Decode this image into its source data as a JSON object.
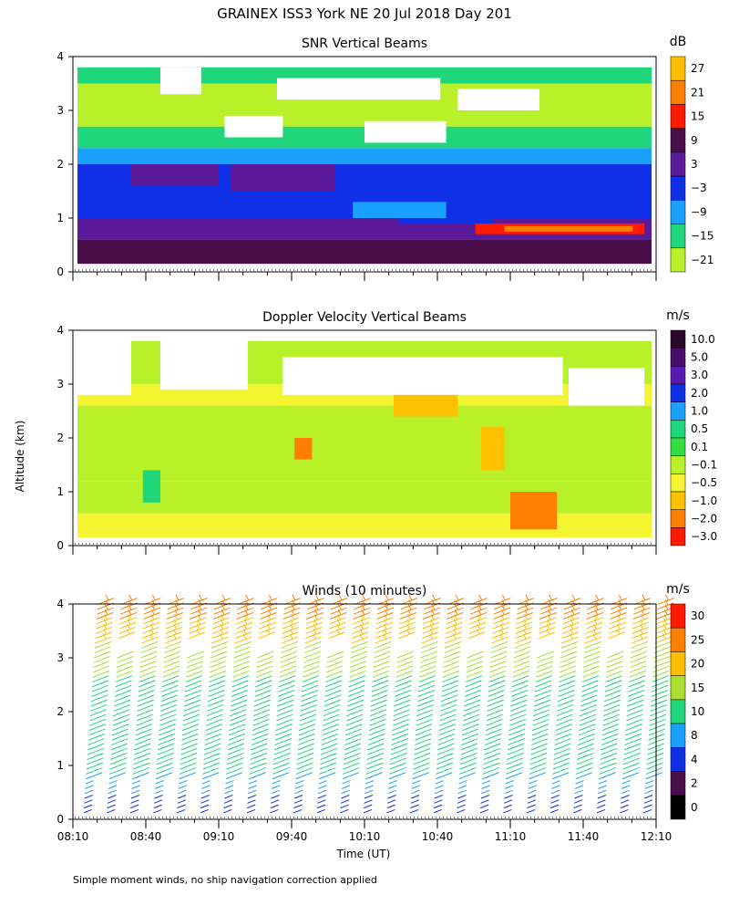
{
  "page": {
    "title": "GRAINEX ISS3 York NE  20 Jul 2018 Day 201",
    "ylabel": "Altitude (km)",
    "xlabel": "Time (UT)",
    "footnote": "Simple moment winds, no ship navigation correction applied"
  },
  "chart_data": [
    {
      "type": "heatmap",
      "title": "SNR Vertical Beams",
      "xlabel": "",
      "ylabel": "Altitude (km)",
      "x_ticks": [],
      "ylim": [
        0,
        4
      ],
      "y_ticks": [
        "0",
        "1",
        "2",
        "3",
        "4"
      ],
      "colorbar": {
        "unit": "dB",
        "labels": [
          "27",
          "21",
          "15",
          "9",
          "3",
          "−3",
          "−9",
          "−15",
          "−21"
        ],
        "colors": [
          "#ffbf00",
          "#ff7f00",
          "#ff1a00",
          "#4a0d4a",
          "#5a1a9a",
          "#1030e8",
          "#1aa0ff",
          "#1fd67a",
          "#b8f02a"
        ]
      },
      "rows": [
        {
          "y0": 0.0,
          "y1": 0.15,
          "c": 3
        },
        {
          "y0": 0.15,
          "y1": 0.6,
          "c": 3
        },
        {
          "y0": 0.6,
          "y1": 1.0,
          "c": 4
        },
        {
          "y0": 1.0,
          "y1": 1.5,
          "c": 5
        },
        {
          "y0": 1.5,
          "y1": 2.0,
          "c": 5
        },
        {
          "y0": 2.0,
          "y1": 2.3,
          "c": 6
        },
        {
          "y0": 2.3,
          "y1": 2.7,
          "c": 7
        },
        {
          "y0": 2.7,
          "y1": 3.1,
          "c": 8
        },
        {
          "y0": 3.1,
          "y1": 3.5,
          "c": 8
        },
        {
          "y0": 3.5,
          "y1": 3.8,
          "c": 7
        }
      ],
      "patches": [
        {
          "x0": 6.9,
          "x1": 9.8,
          "y0": 0.7,
          "y1": 0.9,
          "c": 2
        },
        {
          "x0": 7.4,
          "x1": 9.6,
          "y0": 0.75,
          "y1": 0.85,
          "c": 1
        },
        {
          "x0": 5.6,
          "x1": 7.2,
          "y0": 0.9,
          "y1": 1.1,
          "c": 5
        },
        {
          "x0": 4.8,
          "x1": 6.4,
          "y0": 1.0,
          "y1": 1.3,
          "c": 6
        },
        {
          "x0": 2.7,
          "x1": 4.5,
          "y0": 1.5,
          "y1": 2.0,
          "c": 4
        },
        {
          "x0": 1.0,
          "x1": 2.5,
          "y0": 1.6,
          "y1": 2.0,
          "c": 4
        }
      ],
      "gaps": [
        {
          "x0": 3.5,
          "x1": 6.3,
          "y0": 3.2,
          "y1": 3.6
        },
        {
          "x0": 6.6,
          "x1": 8.0,
          "y0": 3.0,
          "y1": 3.4
        },
        {
          "x0": 1.5,
          "x1": 2.2,
          "y0": 3.3,
          "y1": 3.8
        },
        {
          "x0": 2.6,
          "x1": 3.6,
          "y0": 2.5,
          "y1": 2.9
        },
        {
          "x0": 5.0,
          "x1": 6.4,
          "y0": 2.4,
          "y1": 2.8
        }
      ]
    },
    {
      "type": "heatmap",
      "title": "Doppler Velocity Vertical Beams",
      "xlabel": "",
      "ylabel": "Altitude (km)",
      "x_ticks": [],
      "ylim": [
        0,
        4
      ],
      "y_ticks": [
        "0",
        "1",
        "2",
        "3",
        "4"
      ],
      "colorbar": {
        "unit": "m/s",
        "labels": [
          "10.0",
          "5.0",
          "3.0",
          "2.0",
          "1.0",
          "0.5",
          "0.1",
          "−0.1",
          "−0.5",
          "−1.0",
          "−2.0",
          "−3.0"
        ],
        "colors": [
          "#2a0a2a",
          "#4a0d6a",
          "#5a1ab0",
          "#1030e8",
          "#1aa0ff",
          "#1fd67a",
          "#30e040",
          "#b8f02a",
          "#f4f430",
          "#ffc000",
          "#ff8000",
          "#ff1a00"
        ]
      },
      "rows": [
        {
          "y0": 0.0,
          "y1": 0.15,
          "c": 8
        },
        {
          "y0": 0.15,
          "y1": 0.6,
          "c": 8
        },
        {
          "y0": 0.6,
          "y1": 1.2,
          "c": 7
        },
        {
          "y0": 1.2,
          "y1": 2.0,
          "c": 7
        },
        {
          "y0": 2.0,
          "y1": 2.6,
          "c": 7
        },
        {
          "y0": 2.6,
          "y1": 3.0,
          "c": 8
        },
        {
          "y0": 3.0,
          "y1": 3.5,
          "c": 7
        },
        {
          "y0": 3.5,
          "y1": 3.8,
          "c": 7
        }
      ],
      "patches": [
        {
          "x0": 7.5,
          "x1": 8.3,
          "y0": 0.3,
          "y1": 1.0,
          "c": 10
        },
        {
          "x0": 7.0,
          "x1": 7.4,
          "y0": 1.4,
          "y1": 2.2,
          "c": 9
        },
        {
          "x0": 3.8,
          "x1": 4.1,
          "y0": 1.6,
          "y1": 2.0,
          "c": 10
        },
        {
          "x0": 1.2,
          "x1": 1.5,
          "y0": 0.8,
          "y1": 1.4,
          "c": 5
        },
        {
          "x0": 2.5,
          "x1": 2.9,
          "y0": 3.1,
          "y1": 3.2,
          "c": 10
        },
        {
          "x0": 5.5,
          "x1": 6.6,
          "y0": 2.4,
          "y1": 2.9,
          "c": 9
        }
      ],
      "gaps": [
        {
          "x0": 3.6,
          "x1": 8.4,
          "y0": 2.8,
          "y1": 3.5
        },
        {
          "x0": 1.5,
          "x1": 3.0,
          "y0": 2.9,
          "y1": 4.0
        },
        {
          "x0": 8.5,
          "x1": 9.8,
          "y0": 2.6,
          "y1": 3.3
        },
        {
          "x0": 0.0,
          "x1": 1.0,
          "y0": 2.8,
          "y1": 4.0
        }
      ]
    },
    {
      "type": "barbs",
      "title": "Winds (10 minutes)",
      "xlabel": "Time (UT)",
      "ylabel": "Altitude (km)",
      "x_ticks": [
        "08:10",
        "08:40",
        "09:10",
        "09:40",
        "10:10",
        "10:40",
        "11:10",
        "11:40",
        "12:10"
      ],
      "ylim": [
        0,
        4
      ],
      "y_ticks": [
        "0",
        "1",
        "2",
        "3",
        "4"
      ],
      "colorbar": {
        "unit": "m/s",
        "labels": [
          "30",
          "25",
          "20",
          "15",
          "10",
          "8",
          "4",
          "2",
          "0"
        ],
        "colors": [
          "#ff1a00",
          "#ff7f00",
          "#ffbf00",
          "#a8e030",
          "#1fd67a",
          "#1aa0ff",
          "#1030e8",
          "#4a0d4a",
          "#000000"
        ]
      },
      "profile_times": [
        0.3,
        0.7,
        1.1,
        1.5,
        1.9,
        2.3,
        2.7,
        3.1,
        3.5,
        3.9,
        4.3,
        4.7,
        5.1,
        5.5,
        5.9,
        6.3,
        6.7,
        7.1,
        7.5,
        7.9,
        8.3,
        8.7,
        9.1,
        9.5,
        9.9
      ]
    }
  ]
}
